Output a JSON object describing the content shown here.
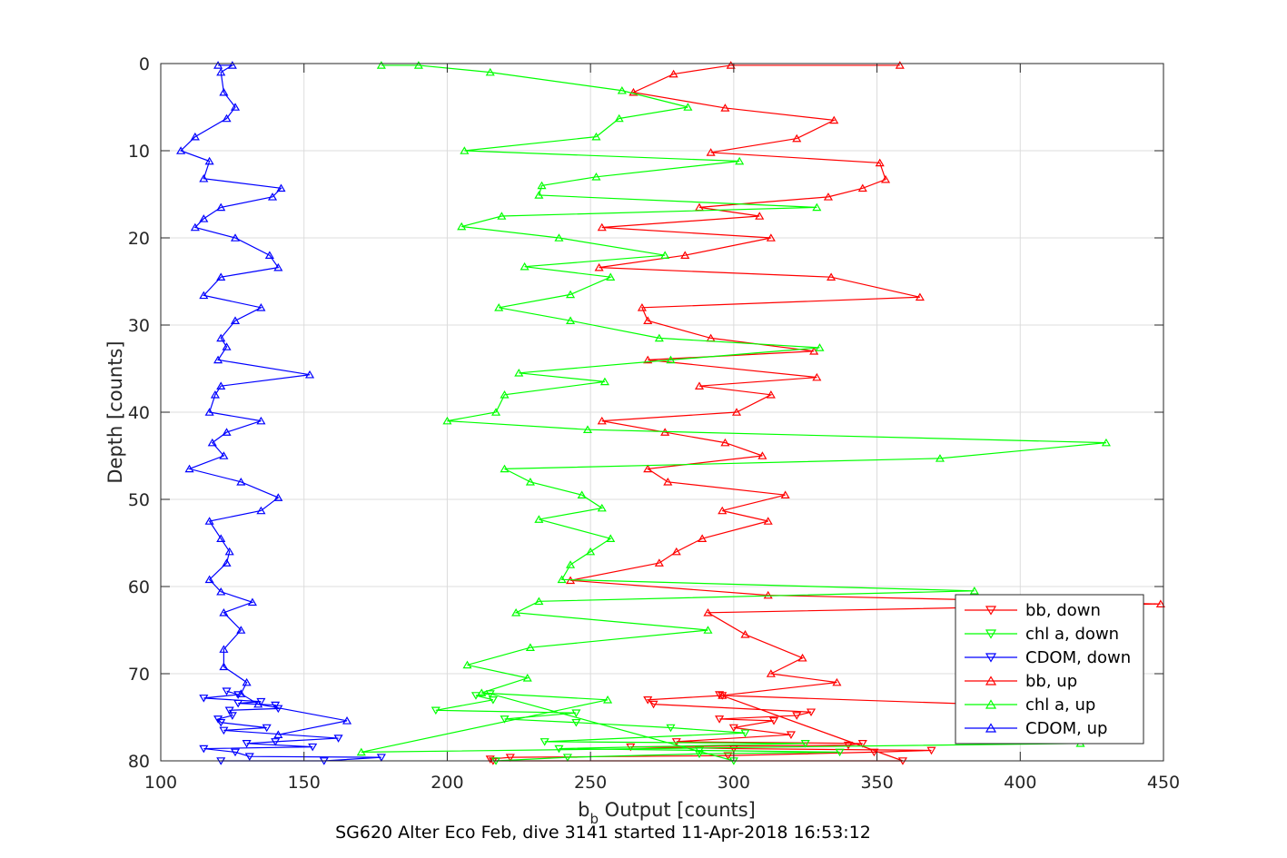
{
  "chart_data": {
    "type": "line",
    "title": "",
    "xlabel": "b_b Output [counts]",
    "xlabel_main": "b",
    "xlabel_sub": "b",
    "xlabel_rest": " Output [counts]",
    "ylabel": "Depth [counts]",
    "caption": "SG620 Alter Eco Feb, dive 3141 started 11-Apr-2018 16:53:12",
    "xlim": [
      100,
      450
    ],
    "ylim": [
      0,
      80
    ],
    "y_reversed": true,
    "xticks": [
      100,
      150,
      200,
      250,
      300,
      350,
      400,
      450
    ],
    "yticks": [
      0,
      10,
      20,
      30,
      40,
      50,
      60,
      70,
      80
    ],
    "grid": true,
    "legend_position": "right, lower half",
    "series": [
      {
        "name": "bb, down",
        "color": "#ff0000",
        "marker": "triangle-down",
        "points": [
          [
            215,
            79.8
          ],
          [
            222,
            79.6
          ],
          [
            298,
            79.4
          ],
          [
            349,
            79.0
          ],
          [
            369,
            78.8
          ],
          [
            300,
            78.6
          ],
          [
            264,
            78.4
          ],
          [
            340,
            78.2
          ],
          [
            345,
            78.0
          ],
          [
            280,
            77.8
          ],
          [
            320,
            77.0
          ],
          [
            300,
            76.2
          ],
          [
            314,
            75.4
          ],
          [
            295,
            75.2
          ],
          [
            322,
            74.8
          ],
          [
            327,
            74.4
          ],
          [
            272,
            73.5
          ],
          [
            270,
            73.0
          ],
          [
            296,
            72.5
          ],
          [
            295,
            72.4
          ],
          [
            359,
            80.0
          ],
          [
            216,
            80.0
          ]
        ]
      },
      {
        "name": "chl a, down",
        "color": "#00ff00",
        "marker": "triangle-down",
        "points": [
          [
            217,
            80.0
          ],
          [
            242,
            79.6
          ],
          [
            288,
            79.2
          ],
          [
            337,
            79.0
          ],
          [
            288,
            78.8
          ],
          [
            239,
            78.6
          ],
          [
            325,
            78.0
          ],
          [
            234,
            77.8
          ],
          [
            304,
            76.8
          ],
          [
            278,
            76.2
          ],
          [
            245,
            75.6
          ],
          [
            220,
            75.2
          ],
          [
            245,
            74.5
          ],
          [
            196,
            74.2
          ],
          [
            216,
            73.0
          ],
          [
            210,
            72.5
          ],
          [
            215,
            72.3
          ],
          [
            300,
            80.0
          ]
        ]
      },
      {
        "name": "CDOM, down",
        "color": "#0000ff",
        "marker": "triangle-down",
        "points": [
          [
            121,
            80.0
          ],
          [
            157,
            80.0
          ],
          [
            177,
            79.6
          ],
          [
            131,
            79.5
          ],
          [
            126,
            79.0
          ],
          [
            115,
            78.6
          ],
          [
            153,
            78.4
          ],
          [
            130,
            78.0
          ],
          [
            140,
            77.8
          ],
          [
            162,
            77.4
          ],
          [
            122,
            76.5
          ],
          [
            137,
            76.2
          ],
          [
            121,
            75.6
          ],
          [
            120,
            75.2
          ],
          [
            125,
            74.8
          ],
          [
            124,
            74.2
          ],
          [
            141,
            74.0
          ],
          [
            140,
            73.6
          ],
          [
            127,
            73.4
          ],
          [
            135,
            73.2
          ],
          [
            115,
            72.8
          ],
          [
            127,
            72.4
          ],
          [
            123,
            72.0
          ]
        ]
      },
      {
        "name": "bb, up",
        "color": "#ff0000",
        "marker": "triangle-up",
        "points": [
          [
            358,
            0.2
          ],
          [
            299,
            0.2
          ],
          [
            279,
            1.2
          ],
          [
            265,
            3.3
          ],
          [
            297,
            5.1
          ],
          [
            335,
            6.5
          ],
          [
            322,
            8.6
          ],
          [
            292,
            10.2
          ],
          [
            351,
            11.4
          ],
          [
            353,
            13.3
          ],
          [
            345,
            14.3
          ],
          [
            333,
            15.3
          ],
          [
            288,
            16.5
          ],
          [
            309,
            17.5
          ],
          [
            254,
            18.8
          ],
          [
            313,
            20.0
          ],
          [
            283,
            22.0
          ],
          [
            253,
            23.4
          ],
          [
            334,
            24.5
          ],
          [
            365,
            26.8
          ],
          [
            268,
            28.0
          ],
          [
            270,
            29.5
          ],
          [
            292,
            31.5
          ],
          [
            328,
            33.0
          ],
          [
            270,
            34.0
          ],
          [
            329,
            36.0
          ],
          [
            288,
            37.0
          ],
          [
            313,
            38.0
          ],
          [
            301,
            40.0
          ],
          [
            254,
            41.0
          ],
          [
            276,
            42.3
          ],
          [
            297,
            43.5
          ],
          [
            310,
            45.0
          ],
          [
            270,
            46.5
          ],
          [
            277,
            48.0
          ],
          [
            318,
            49.5
          ],
          [
            296,
            51.3
          ],
          [
            312,
            52.5
          ],
          [
            289,
            54.5
          ],
          [
            280,
            56.0
          ],
          [
            274,
            57.3
          ],
          [
            243,
            59.3
          ],
          [
            312,
            61.0
          ],
          [
            449,
            62.0
          ],
          [
            291,
            63.0
          ],
          [
            304,
            65.5
          ],
          [
            324,
            68.2
          ],
          [
            313,
            70.0
          ],
          [
            336,
            71.0
          ],
          [
            296,
            72.5
          ],
          [
            430,
            74.0
          ]
        ]
      },
      {
        "name": "chl a, up",
        "color": "#00ff00",
        "marker": "triangle-up",
        "points": [
          [
            177,
            0.2
          ],
          [
            190,
            0.2
          ],
          [
            215,
            1.0
          ],
          [
            261,
            3.1
          ],
          [
            284,
            5.0
          ],
          [
            260,
            6.3
          ],
          [
            252,
            8.4
          ],
          [
            206,
            10.0
          ],
          [
            302,
            11.2
          ],
          [
            252,
            13.0
          ],
          [
            233,
            14.0
          ],
          [
            232,
            15.1
          ],
          [
            329,
            16.5
          ],
          [
            219,
            17.5
          ],
          [
            205,
            18.7
          ],
          [
            239,
            20.0
          ],
          [
            276,
            22.0
          ],
          [
            227,
            23.3
          ],
          [
            257,
            24.5
          ],
          [
            243,
            26.5
          ],
          [
            218,
            28.0
          ],
          [
            243,
            29.5
          ],
          [
            274,
            31.5
          ],
          [
            330,
            32.6
          ],
          [
            278,
            34.0
          ],
          [
            225,
            35.5
          ],
          [
            255,
            36.5
          ],
          [
            220,
            38.0
          ],
          [
            217,
            40.0
          ],
          [
            200,
            41.0
          ],
          [
            249,
            42.0
          ],
          [
            430,
            43.5
          ],
          [
            372,
            45.3
          ],
          [
            220,
            46.5
          ],
          [
            229,
            48.0
          ],
          [
            247,
            49.5
          ],
          [
            254,
            51.0
          ],
          [
            232,
            52.3
          ],
          [
            257,
            54.5
          ],
          [
            250,
            56.0
          ],
          [
            243,
            57.5
          ],
          [
            240,
            59.2
          ],
          [
            384,
            60.5
          ],
          [
            232,
            61.7
          ],
          [
            224,
            63.0
          ],
          [
            291,
            65.0
          ],
          [
            229,
            67.0
          ],
          [
            207,
            69.0
          ],
          [
            228,
            70.5
          ],
          [
            212,
            72.2
          ],
          [
            256,
            73.0
          ],
          [
            170,
            79.0
          ],
          [
            421,
            78.0
          ]
        ]
      },
      {
        "name": "CDOM, up",
        "color": "#0000ff",
        "marker": "triangle-up",
        "points": [
          [
            120,
            0.2
          ],
          [
            125,
            0.2
          ],
          [
            121,
            1.0
          ],
          [
            122,
            3.3
          ],
          [
            126,
            5.0
          ],
          [
            123,
            6.3
          ],
          [
            112,
            8.4
          ],
          [
            107,
            10.0
          ],
          [
            117,
            11.2
          ],
          [
            115,
            13.2
          ],
          [
            142,
            14.3
          ],
          [
            139,
            15.3
          ],
          [
            121,
            16.5
          ],
          [
            115,
            17.8
          ],
          [
            112,
            18.8
          ],
          [
            126,
            20.0
          ],
          [
            138,
            22.0
          ],
          [
            141,
            23.4
          ],
          [
            121,
            24.5
          ],
          [
            115,
            26.6
          ],
          [
            135,
            28.0
          ],
          [
            126,
            29.5
          ],
          [
            121,
            31.5
          ],
          [
            123,
            32.5
          ],
          [
            120,
            34.0
          ],
          [
            152,
            35.7
          ],
          [
            121,
            37.0
          ],
          [
            119,
            38.0
          ],
          [
            117,
            40.0
          ],
          [
            135,
            41.0
          ],
          [
            123,
            42.3
          ],
          [
            118,
            43.5
          ],
          [
            122,
            45.0
          ],
          [
            110,
            46.5
          ],
          [
            128,
            48.0
          ],
          [
            141,
            49.8
          ],
          [
            135,
            51.3
          ],
          [
            117,
            52.5
          ],
          [
            121,
            54.5
          ],
          [
            124,
            56.0
          ],
          [
            123,
            57.3
          ],
          [
            117,
            59.2
          ],
          [
            121,
            60.6
          ],
          [
            132,
            61.8
          ],
          [
            122,
            63.0
          ],
          [
            128,
            65.0
          ],
          [
            122,
            67.2
          ],
          [
            122,
            69.2
          ],
          [
            130,
            71.0
          ],
          [
            128,
            72.3
          ],
          [
            134,
            73.5
          ],
          [
            165,
            75.4
          ],
          [
            141,
            77.0
          ]
        ]
      }
    ]
  }
}
